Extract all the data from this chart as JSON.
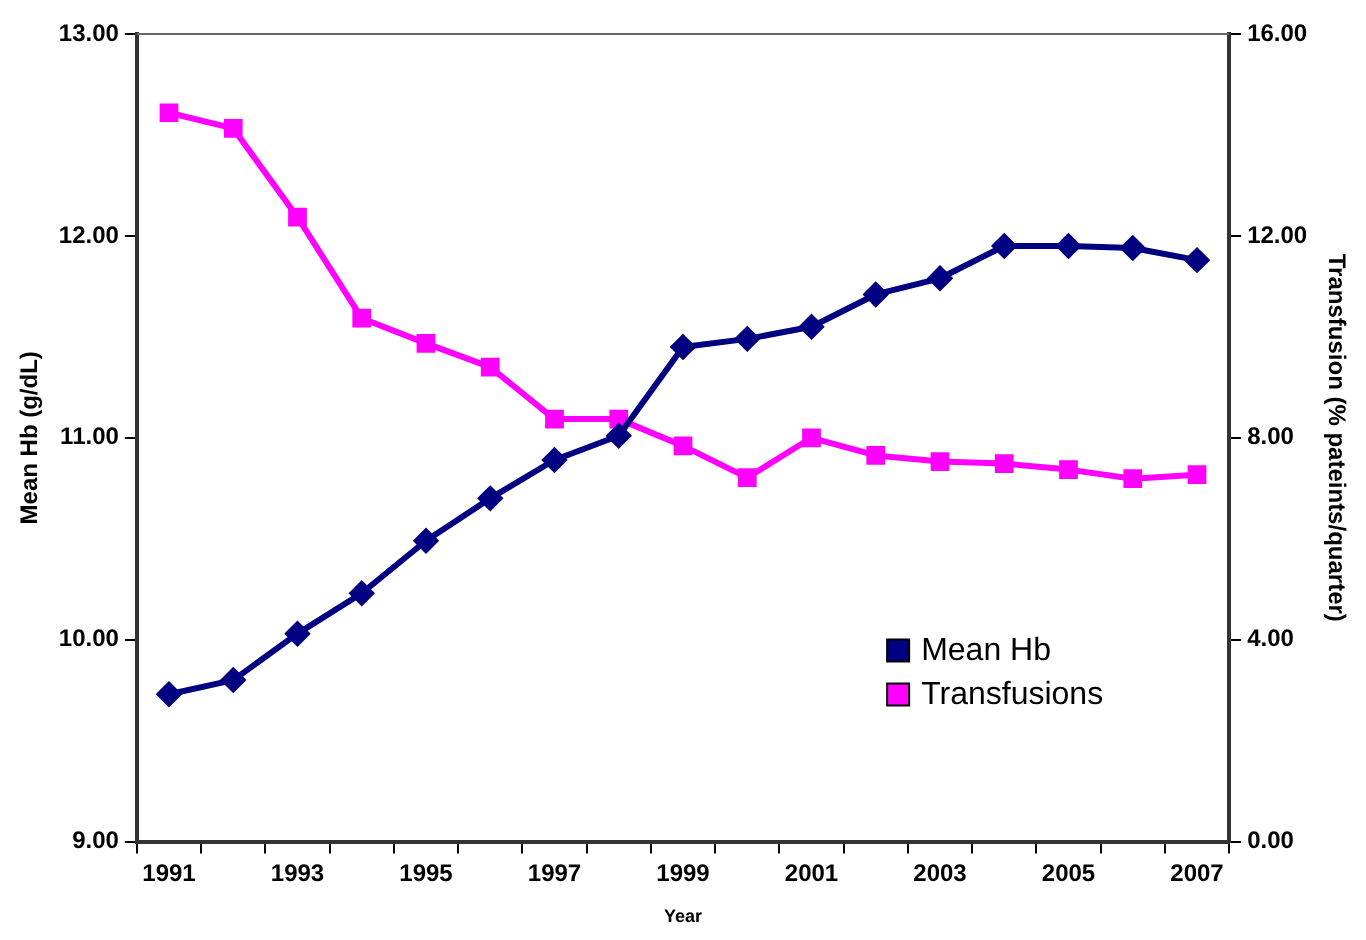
{
  "chart_data": {
    "type": "line",
    "xlabel": "Year",
    "ylabel": "Mean Hb (g/dL)",
    "y2label": "Transfusion (% pateints/quarter)",
    "categories": [
      "1991",
      null,
      "1993",
      null,
      "1995",
      null,
      "1997",
      null,
      "1999",
      null,
      "2001",
      null,
      "2003",
      null,
      "2005",
      null,
      "2007"
    ],
    "series": [
      {
        "name": "Mean Hb",
        "color": "#000080",
        "marker": "diamond",
        "values": [
          9.73,
          9.8,
          10.03,
          10.23,
          10.49,
          10.7,
          10.89,
          11.01,
          11.45,
          11.49,
          11.55,
          11.71,
          11.79,
          11.95,
          11.95,
          11.94,
          11.88
        ]
      },
      {
        "name": "Transfusions",
        "color": "#ff00ff",
        "marker": "square",
        "axis": "y2",
        "values": [
          14.44,
          14.13,
          12.37,
          10.37,
          9.87,
          9.4,
          8.37,
          8.37,
          7.84,
          7.21,
          8.0,
          7.65,
          7.53,
          7.49,
          7.37,
          7.19,
          7.27
        ]
      }
    ],
    "ylim": [
      9,
      13
    ],
    "yticks": [
      {
        "value": 9,
        "label": "9.00"
      },
      {
        "value": 10,
        "label": "10.00"
      },
      {
        "value": 11,
        "label": "11.00"
      },
      {
        "value": 12,
        "label": "12.00"
      },
      {
        "value": 13,
        "label": "13.00"
      }
    ],
    "y2lim": [
      0,
      16
    ],
    "y2ticks": [
      {
        "value": 0,
        "label": "0.00"
      },
      {
        "value": 4,
        "label": "4.00"
      },
      {
        "value": 8,
        "label": "8.00"
      },
      {
        "value": 12,
        "label": "12.00"
      },
      {
        "value": 16,
        "label": "16.00"
      }
    ],
    "grid": false,
    "legend": "bottom right",
    "line_style": "solid"
  }
}
